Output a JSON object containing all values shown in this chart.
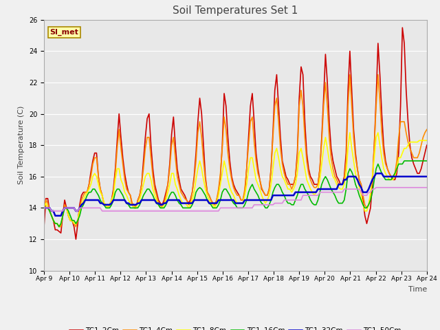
{
  "title": "Soil Temperatures Set 1",
  "xlabel": "Time",
  "ylabel": "Soil Temperature (C)",
  "annotation": "SI_met",
  "ylim": [
    10,
    26
  ],
  "fig_facecolor": "#e8e8e8",
  "plot_facecolor": "#e8e8e8",
  "series_colors": {
    "TC1_2Cm": "#cc0000",
    "TC1_4Cm": "#ff8c00",
    "TC1_8Cm": "#ffff00",
    "TC1_16Cm": "#00bb00",
    "TC1_32Cm": "#0000cc",
    "TC1_50Cm": "#dd88dd"
  },
  "x_tick_labels": [
    "Apr 9",
    "Apr 10",
    "Apr 11",
    "Apr 12",
    "Apr 13",
    "Apr 14",
    "Apr 15",
    "Apr 16",
    "Apr 17",
    "Apr 18",
    "Apr 19",
    "Apr 20",
    "Apr 21",
    "Apr 22",
    "Apr 23",
    "Apr 24"
  ],
  "x_ticks": [
    0,
    24,
    48,
    72,
    96,
    120,
    144,
    168,
    192,
    216,
    240,
    264,
    288,
    312,
    336,
    360
  ],
  "yticks": [
    10,
    12,
    14,
    16,
    18,
    20,
    22,
    24,
    26
  ],
  "TC1_2Cm": [
    12.8,
    14.6,
    14.6,
    13.8,
    13.5,
    13.2,
    12.6,
    12.6,
    12.5,
    12.4,
    13.5,
    14.5,
    14.0,
    13.5,
    13.2,
    13.2,
    12.8,
    12.0,
    13.0,
    14.2,
    14.8,
    15.0,
    15.0,
    15.0,
    15.5,
    16.3,
    17.0,
    17.5,
    17.5,
    16.0,
    15.2,
    14.8,
    14.2,
    14.2,
    14.0,
    14.2,
    14.5,
    15.2,
    16.5,
    18.3,
    20.0,
    18.5,
    17.2,
    16.2,
    15.5,
    15.0,
    14.8,
    14.2,
    14.0,
    14.0,
    14.5,
    14.8,
    15.5,
    17.0,
    18.5,
    19.7,
    20.0,
    18.0,
    16.5,
    15.5,
    15.0,
    14.5,
    14.3,
    14.2,
    14.5,
    15.0,
    15.5,
    16.8,
    18.7,
    19.8,
    18.0,
    16.5,
    15.8,
    15.2,
    15.0,
    14.8,
    14.5,
    14.3,
    14.5,
    15.0,
    16.0,
    17.5,
    19.5,
    21.0,
    20.0,
    18.0,
    16.0,
    15.0,
    14.8,
    14.5,
    14.3,
    14.2,
    14.5,
    15.0,
    16.0,
    18.0,
    21.3,
    20.5,
    18.5,
    17.0,
    16.0,
    15.5,
    15.2,
    15.0,
    14.8,
    14.5,
    14.5,
    15.0,
    16.5,
    18.5,
    20.5,
    21.3,
    19.5,
    17.5,
    16.5,
    15.8,
    15.2,
    15.0,
    14.8,
    14.8,
    15.2,
    16.5,
    18.8,
    21.5,
    22.5,
    20.5,
    18.5,
    17.0,
    16.5,
    16.0,
    15.8,
    15.5,
    15.5,
    15.5,
    16.0,
    17.5,
    21.0,
    23.0,
    22.5,
    19.5,
    17.5,
    16.5,
    16.0,
    15.8,
    15.5,
    15.5,
    15.5,
    16.5,
    18.5,
    21.0,
    23.8,
    22.0,
    19.5,
    17.8,
    17.0,
    16.5,
    16.0,
    15.8,
    15.5,
    15.5,
    16.0,
    17.5,
    21.5,
    24.0,
    21.5,
    19.0,
    17.5,
    16.5,
    15.8,
    15.5,
    14.5,
    13.5,
    13.0,
    13.5,
    14.0,
    15.5,
    18.0,
    21.0,
    24.5,
    22.5,
    20.0,
    18.0,
    17.0,
    16.5,
    16.2,
    16.0,
    15.8,
    15.8,
    16.2,
    17.5,
    20.5,
    25.5,
    24.5,
    21.5,
    19.5,
    18.0,
    17.2,
    16.8,
    16.5,
    16.2,
    16.2,
    16.5,
    17.0,
    17.5,
    18.0
  ],
  "TC1_4Cm": [
    13.8,
    14.5,
    14.3,
    13.8,
    13.5,
    13.2,
    13.0,
    13.0,
    12.8,
    12.8,
    13.5,
    14.2,
    14.0,
    13.5,
    13.2,
    13.2,
    13.0,
    12.8,
    13.2,
    14.0,
    14.5,
    14.8,
    15.0,
    15.0,
    15.5,
    16.0,
    16.8,
    17.2,
    17.2,
    16.0,
    15.2,
    14.8,
    14.3,
    14.2,
    14.0,
    14.2,
    14.5,
    15.0,
    16.2,
    17.8,
    19.0,
    17.8,
    16.8,
    15.8,
    15.2,
    15.0,
    14.8,
    14.3,
    14.2,
    14.0,
    14.5,
    14.8,
    15.5,
    16.5,
    17.8,
    18.5,
    18.5,
    17.2,
    16.0,
    15.2,
    14.8,
    14.3,
    14.2,
    14.0,
    14.3,
    14.8,
    15.5,
    16.5,
    18.0,
    18.5,
    17.2,
    16.0,
    15.5,
    15.0,
    14.8,
    14.6,
    14.5,
    14.2,
    14.3,
    15.0,
    15.8,
    17.0,
    18.8,
    19.5,
    18.5,
    17.0,
    15.8,
    15.0,
    14.8,
    14.5,
    14.3,
    14.2,
    14.5,
    15.2,
    16.2,
    17.8,
    19.8,
    19.0,
    17.5,
    16.5,
    15.8,
    15.3,
    15.0,
    14.8,
    14.8,
    14.5,
    14.5,
    15.2,
    16.5,
    18.0,
    19.5,
    19.8,
    18.2,
    17.0,
    16.2,
    15.8,
    15.3,
    15.0,
    14.8,
    14.8,
    15.2,
    16.5,
    18.5,
    20.5,
    21.0,
    19.5,
    17.8,
    16.8,
    16.2,
    15.8,
    15.5,
    15.5,
    15.2,
    15.5,
    16.0,
    17.2,
    20.5,
    21.5,
    20.5,
    18.5,
    17.0,
    16.2,
    15.8,
    15.5,
    15.3,
    15.3,
    15.5,
    16.5,
    18.2,
    20.5,
    22.0,
    20.5,
    18.5,
    17.2,
    16.5,
    16.0,
    15.8,
    15.5,
    15.5,
    15.5,
    15.8,
    17.0,
    20.5,
    22.5,
    20.5,
    18.5,
    17.2,
    16.5,
    15.8,
    15.5,
    14.8,
    14.2,
    14.0,
    14.2,
    14.8,
    16.0,
    18.0,
    20.5,
    22.5,
    20.8,
    18.8,
    17.5,
    16.8,
    16.5,
    16.2,
    16.0,
    16.0,
    16.2,
    17.0,
    18.5,
    19.5,
    19.5,
    19.5,
    18.8,
    18.2,
    17.8,
    17.5,
    17.2,
    17.2,
    17.2,
    17.5,
    18.0,
    18.5,
    18.8,
    19.0
  ],
  "TC1_8Cm": [
    14.0,
    14.3,
    14.0,
    13.8,
    13.5,
    13.2,
    13.0,
    13.0,
    12.8,
    13.0,
    13.5,
    14.0,
    14.0,
    13.5,
    13.2,
    13.2,
    13.0,
    13.0,
    13.2,
    13.8,
    14.2,
    14.5,
    14.8,
    15.0,
    15.2,
    15.5,
    16.0,
    16.2,
    16.0,
    15.5,
    15.0,
    14.8,
    14.3,
    14.2,
    14.0,
    14.2,
    14.5,
    14.8,
    15.8,
    16.5,
    16.5,
    15.8,
    15.5,
    15.0,
    14.8,
    14.5,
    14.3,
    14.2,
    14.0,
    14.0,
    14.3,
    14.5,
    15.0,
    15.5,
    16.0,
    16.2,
    16.2,
    15.8,
    15.2,
    14.8,
    14.5,
    14.2,
    14.0,
    14.0,
    14.2,
    14.5,
    15.0,
    15.5,
    16.2,
    16.2,
    15.5,
    15.2,
    14.8,
    14.5,
    14.3,
    14.3,
    14.2,
    14.0,
    14.2,
    14.5,
    15.0,
    15.8,
    16.5,
    17.0,
    16.5,
    15.8,
    15.2,
    14.8,
    14.5,
    14.3,
    14.2,
    14.0,
    14.3,
    14.8,
    15.5,
    16.2,
    17.0,
    16.5,
    15.8,
    15.3,
    15.0,
    14.8,
    14.5,
    14.3,
    14.3,
    14.3,
    14.3,
    14.8,
    15.5,
    16.5,
    17.2,
    17.2,
    16.5,
    15.8,
    15.5,
    15.2,
    14.8,
    14.5,
    14.3,
    14.5,
    14.8,
    15.5,
    16.5,
    17.5,
    17.8,
    17.2,
    16.5,
    16.0,
    15.8,
    15.5,
    15.2,
    15.2,
    15.0,
    15.2,
    15.5,
    16.2,
    17.5,
    17.8,
    17.2,
    16.5,
    15.8,
    15.5,
    15.2,
    15.0,
    14.8,
    15.0,
    15.2,
    15.8,
    16.8,
    17.8,
    18.5,
    17.8,
    17.0,
    16.5,
    16.0,
    15.8,
    15.5,
    15.3,
    15.2,
    15.2,
    15.5,
    16.2,
    17.8,
    18.8,
    17.8,
    17.0,
    16.2,
    15.8,
    15.3,
    14.8,
    14.2,
    13.8,
    13.8,
    14.2,
    15.0,
    16.0,
    17.2,
    18.5,
    18.8,
    18.0,
    17.2,
    16.5,
    16.2,
    16.0,
    15.8,
    15.8,
    15.8,
    16.0,
    16.5,
    17.2,
    17.2,
    17.5,
    17.8,
    17.8,
    18.0,
    18.2,
    18.2,
    18.2,
    18.2,
    18.2,
    18.3,
    18.3,
    18.3,
    18.3,
    18.3
  ],
  "TC1_16Cm": [
    14.0,
    14.0,
    14.0,
    13.8,
    13.5,
    13.2,
    13.0,
    13.0,
    12.8,
    13.0,
    13.5,
    14.0,
    14.0,
    13.8,
    13.5,
    13.2,
    13.2,
    13.0,
    13.2,
    13.5,
    14.0,
    14.2,
    14.5,
    14.8,
    15.0,
    15.0,
    15.2,
    15.2,
    15.0,
    14.8,
    14.5,
    14.3,
    14.2,
    14.0,
    14.0,
    14.0,
    14.2,
    14.5,
    15.0,
    15.2,
    15.2,
    15.0,
    14.8,
    14.5,
    14.3,
    14.2,
    14.0,
    14.0,
    14.0,
    14.0,
    14.0,
    14.2,
    14.5,
    14.8,
    15.0,
    15.2,
    15.2,
    15.0,
    14.8,
    14.5,
    14.3,
    14.2,
    14.0,
    14.0,
    14.0,
    14.2,
    14.5,
    14.8,
    15.0,
    15.0,
    14.8,
    14.5,
    14.3,
    14.2,
    14.0,
    14.0,
    14.0,
    14.0,
    14.0,
    14.2,
    14.5,
    15.0,
    15.2,
    15.3,
    15.2,
    15.0,
    14.8,
    14.5,
    14.3,
    14.2,
    14.0,
    14.0,
    14.0,
    14.2,
    14.5,
    15.0,
    15.2,
    15.2,
    15.0,
    14.8,
    14.5,
    14.3,
    14.2,
    14.0,
    14.0,
    14.0,
    14.0,
    14.2,
    14.5,
    15.0,
    15.3,
    15.5,
    15.2,
    15.0,
    14.8,
    14.5,
    14.3,
    14.2,
    14.0,
    14.0,
    14.2,
    14.5,
    15.0,
    15.3,
    15.5,
    15.5,
    15.3,
    15.0,
    14.8,
    14.5,
    14.3,
    14.3,
    14.2,
    14.2,
    14.5,
    14.8,
    15.2,
    15.5,
    15.5,
    15.2,
    15.0,
    14.8,
    14.5,
    14.3,
    14.2,
    14.2,
    14.5,
    15.0,
    15.5,
    15.8,
    16.0,
    15.8,
    15.5,
    15.2,
    15.0,
    14.8,
    14.5,
    14.3,
    14.3,
    14.3,
    14.5,
    15.2,
    16.2,
    16.5,
    16.3,
    16.0,
    15.5,
    15.2,
    14.8,
    14.5,
    14.2,
    14.0,
    14.0,
    14.2,
    14.5,
    15.0,
    15.8,
    16.5,
    16.8,
    16.5,
    16.2,
    16.0,
    15.8,
    15.8,
    15.8,
    15.8,
    16.0,
    16.2,
    16.5,
    16.8,
    16.8,
    16.8,
    17.0,
    17.0,
    17.0,
    17.0,
    17.0,
    17.0,
    17.0,
    17.0,
    17.0,
    17.0,
    17.0,
    17.0,
    17.0
  ],
  "TC1_32Cm": [
    14.0,
    14.0,
    14.0,
    14.0,
    13.8,
    13.8,
    13.5,
    13.5,
    13.5,
    13.5,
    13.8,
    14.0,
    14.0,
    14.0,
    14.0,
    14.0,
    14.0,
    13.8,
    13.8,
    14.0,
    14.2,
    14.3,
    14.5,
    14.5,
    14.5,
    14.5,
    14.5,
    14.5,
    14.5,
    14.5,
    14.3,
    14.3,
    14.2,
    14.2,
    14.2,
    14.2,
    14.3,
    14.5,
    14.5,
    14.5,
    14.5,
    14.5,
    14.5,
    14.5,
    14.3,
    14.3,
    14.2,
    14.2,
    14.2,
    14.2,
    14.3,
    14.3,
    14.5,
    14.5,
    14.5,
    14.5,
    14.5,
    14.5,
    14.5,
    14.5,
    14.3,
    14.3,
    14.2,
    14.2,
    14.3,
    14.3,
    14.5,
    14.5,
    14.5,
    14.5,
    14.5,
    14.5,
    14.5,
    14.3,
    14.3,
    14.3,
    14.3,
    14.3,
    14.3,
    14.3,
    14.5,
    14.5,
    14.5,
    14.5,
    14.5,
    14.5,
    14.5,
    14.5,
    14.3,
    14.3,
    14.3,
    14.3,
    14.3,
    14.5,
    14.5,
    14.5,
    14.5,
    14.5,
    14.5,
    14.5,
    14.5,
    14.5,
    14.3,
    14.3,
    14.3,
    14.3,
    14.3,
    14.5,
    14.5,
    14.5,
    14.5,
    14.5,
    14.5,
    14.5,
    14.5,
    14.5,
    14.5,
    14.5,
    14.5,
    14.5,
    14.5,
    14.5,
    14.8,
    14.8,
    14.8,
    14.8,
    14.8,
    14.8,
    14.8,
    14.8,
    14.8,
    14.8,
    14.8,
    14.8,
    15.0,
    15.0,
    15.0,
    15.0,
    15.0,
    15.0,
    15.0,
    15.0,
    15.0,
    15.0,
    15.0,
    15.0,
    15.2,
    15.2,
    15.2,
    15.2,
    15.2,
    15.2,
    15.2,
    15.2,
    15.2,
    15.2,
    15.2,
    15.5,
    15.5,
    15.5,
    15.8,
    15.8,
    16.0,
    16.0,
    16.0,
    16.0,
    16.0,
    15.8,
    15.5,
    15.3,
    15.0,
    15.0,
    15.0,
    15.2,
    15.5,
    15.8,
    16.0,
    16.2,
    16.2,
    16.2,
    16.2,
    16.0,
    16.0,
    16.0,
    16.0,
    16.0,
    16.0,
    16.0,
    16.0,
    16.0,
    16.0,
    16.0,
    16.0,
    16.0,
    16.0,
    16.0,
    16.0,
    16.0,
    16.0,
    16.0,
    16.0,
    16.0,
    16.0,
    16.0,
    16.0
  ],
  "TC1_50Cm": [
    14.0,
    14.0,
    14.0,
    14.0,
    13.8,
    13.8,
    13.8,
    13.8,
    13.8,
    13.8,
    13.8,
    14.0,
    14.0,
    14.0,
    14.0,
    14.0,
    14.0,
    13.8,
    13.8,
    14.0,
    14.0,
    14.0,
    14.0,
    14.0,
    14.0,
    14.0,
    14.0,
    14.0,
    14.0,
    14.0,
    14.0,
    13.8,
    13.8,
    13.8,
    13.8,
    13.8,
    13.8,
    13.8,
    13.8,
    13.8,
    13.8,
    13.8,
    13.8,
    13.8,
    13.8,
    13.8,
    13.8,
    13.8,
    13.8,
    13.8,
    13.8,
    13.8,
    13.8,
    13.8,
    13.8,
    13.8,
    13.8,
    13.8,
    13.8,
    13.8,
    13.8,
    13.8,
    13.8,
    13.8,
    13.8,
    13.8,
    13.8,
    13.8,
    13.8,
    13.8,
    13.8,
    13.8,
    13.8,
    13.8,
    13.8,
    13.8,
    13.8,
    13.8,
    13.8,
    13.8,
    13.8,
    13.8,
    13.8,
    13.8,
    13.8,
    13.8,
    13.8,
    13.8,
    13.8,
    13.8,
    13.8,
    13.8,
    13.8,
    13.8,
    14.0,
    14.0,
    14.0,
    14.0,
    14.0,
    14.0,
    14.0,
    14.0,
    14.0,
    14.0,
    14.0,
    14.0,
    14.0,
    14.0,
    14.0,
    14.0,
    14.0,
    14.0,
    14.2,
    14.2,
    14.2,
    14.2,
    14.2,
    14.2,
    14.2,
    14.2,
    14.2,
    14.2,
    14.2,
    14.3,
    14.3,
    14.3,
    14.3,
    14.3,
    14.5,
    14.5,
    14.5,
    14.5,
    14.5,
    14.5,
    14.5,
    14.5,
    14.5,
    14.5,
    14.8,
    14.8,
    14.8,
    14.8,
    14.8,
    14.8,
    14.8,
    14.8,
    14.8,
    15.0,
    15.0,
    15.0,
    15.0,
    15.0,
    15.0,
    15.0,
    15.0,
    15.0,
    15.0,
    15.0,
    15.0,
    15.0,
    15.2,
    15.2,
    15.2,
    15.2,
    15.2,
    15.2,
    15.2,
    15.2,
    15.2,
    15.0,
    14.8,
    14.8,
    14.8,
    15.0,
    15.0,
    15.2,
    15.2,
    15.3,
    15.3,
    15.3,
    15.3,
    15.3,
    15.3,
    15.3,
    15.3,
    15.3,
    15.3,
    15.3,
    15.3,
    15.3,
    15.3,
    15.3,
    15.3,
    15.3,
    15.3,
    15.3,
    15.3,
    15.3,
    15.3,
    15.3,
    15.3,
    15.3,
    15.3,
    15.3,
    15.3
  ]
}
